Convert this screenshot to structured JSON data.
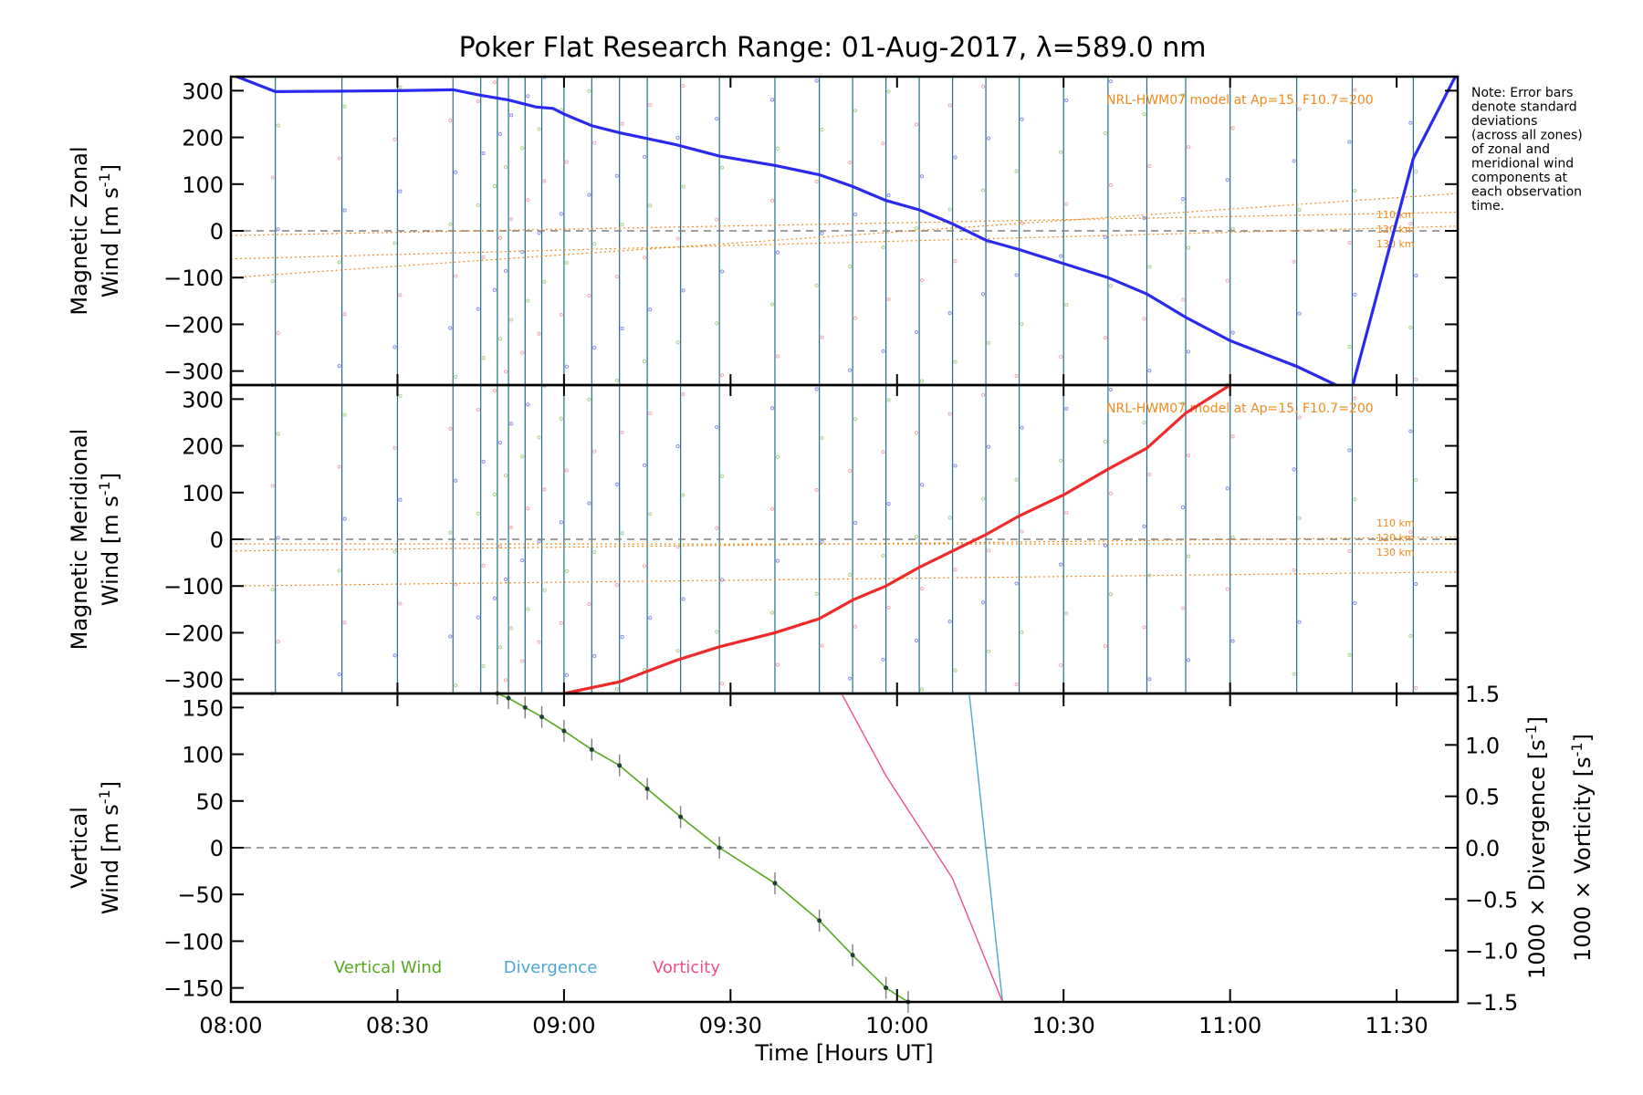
{
  "chart_data": [
    {
      "panel": "top",
      "type": "line",
      "title": "Poker Flat Research Range: 01-Aug-2017, λ=589.0 nm",
      "ylabel_line1": "Magnetic Zonal",
      "ylabel_line2_prefix": "Wind [m s",
      "ylabel_line2_sup": "-1",
      "ylabel_line2_suffix": "]",
      "ylim": [
        -330,
        330
      ],
      "yticks": [
        -300,
        -200,
        -100,
        0,
        100,
        200,
        300
      ],
      "ytick_labels": [
        "−300",
        "−200",
        "−100",
        "0",
        "100",
        "200",
        "300"
      ],
      "model_label": "NRL-HWM07 model at Ap=15, F10.7=200",
      "model_alt_labels": [
        "110 km",
        "120 km",
        "130 km"
      ],
      "note": [
        "Note: Error bars",
        "denote standard",
        "deviations",
        "(across all zones)",
        "of zonal and",
        "meridional wind",
        "components at",
        "each observation",
        "time."
      ],
      "series": [
        {
          "color": "#2a2aee",
          "x": [
            "08:00",
            "08:08",
            "08:20",
            "08:30",
            "08:40",
            "08:45",
            "08:50",
            "08:55",
            "08:58",
            "09:00",
            "09:05",
            "09:10",
            "09:20",
            "09:28",
            "09:38",
            "09:46",
            "09:52",
            "09:58",
            "10:04",
            "10:10",
            "10:16",
            "10:22",
            "10:30",
            "10:38",
            "10:45",
            "10:52",
            "11:00",
            "11:12",
            "11:20",
            "11:22",
            "11:33",
            "11:41"
          ],
          "y": [
            335,
            298,
            299,
            300,
            302,
            290,
            280,
            265,
            262,
            250,
            225,
            210,
            185,
            160,
            140,
            120,
            95,
            65,
            45,
            15,
            -20,
            -40,
            -70,
            -100,
            -135,
            -185,
            -235,
            -290,
            -335,
            -335,
            155,
            340
          ]
        }
      ],
      "model_lines": [
        {
          "label": "110 km",
          "x": [
            "08:00",
            "11:41"
          ],
          "y": [
            -100,
            80
          ]
        },
        {
          "label": "120 km",
          "x": [
            "08:00",
            "11:41"
          ],
          "y": [
            -60,
            10
          ]
        },
        {
          "label": "130 km",
          "x": [
            "08:00",
            "11:41"
          ],
          "y": [
            -10,
            40
          ]
        }
      ]
    },
    {
      "panel": "middle",
      "type": "line",
      "ylabel_line1": "Magnetic Meridional",
      "ylabel_line2_prefix": "Wind [m s",
      "ylabel_line2_sup": "-1",
      "ylabel_line2_suffix": "]",
      "ylim": [
        -330,
        330
      ],
      "yticks": [
        -300,
        -200,
        -100,
        0,
        100,
        200,
        300
      ],
      "ytick_labels": [
        "−300",
        "−200",
        "−100",
        "0",
        "100",
        "200",
        "300"
      ],
      "model_label": "NRL-HWM07 model at Ap=15, F10.7=200",
      "model_alt_labels": [
        "110 km",
        "120 km",
        "130 km"
      ],
      "series": [
        {
          "color": "#ee2a2a",
          "x": [
            "09:00",
            "09:10",
            "09:20",
            "09:28",
            "09:38",
            "09:46",
            "09:52",
            "09:58",
            "10:04",
            "10:10",
            "10:16",
            "10:22",
            "10:30",
            "10:38",
            "10:45",
            "10:52",
            "11:00"
          ],
          "y": [
            -330,
            -305,
            -260,
            -230,
            -200,
            -170,
            -130,
            -100,
            -60,
            -25,
            10,
            50,
            95,
            150,
            195,
            270,
            330
          ]
        }
      ],
      "model_lines": [
        {
          "label": "110 km",
          "x": [
            "08:00",
            "11:41"
          ],
          "y": [
            -100,
            -70
          ]
        },
        {
          "label": "120 km",
          "x": [
            "08:00",
            "11:41"
          ],
          "y": [
            -25,
            5
          ]
        },
        {
          "label": "130 km",
          "x": [
            "08:00",
            "11:41"
          ],
          "y": [
            -10,
            -10
          ]
        }
      ]
    },
    {
      "panel": "bottom",
      "type": "line",
      "xlabel": "Time [Hours UT]",
      "xticks": [
        "08:00",
        "08:30",
        "09:00",
        "09:30",
        "10:00",
        "10:30",
        "11:00",
        "11:30"
      ],
      "xlim": [
        "08:00",
        "11:41"
      ],
      "ylabel_line1": "Vertical",
      "ylabel_line2_prefix": "Wind [m s",
      "ylabel_line2_sup": "-1",
      "ylabel_line2_suffix": "]",
      "ylim": [
        -165,
        165
      ],
      "yticks": [
        -150,
        -100,
        -50,
        0,
        50,
        100,
        150
      ],
      "ytick_labels": [
        "−150",
        "−100",
        "−50",
        "0",
        "50",
        "100",
        "150"
      ],
      "y2lim": [
        -1.5,
        1.5
      ],
      "y2ticks": [
        -1.5,
        -1.0,
        -0.5,
        0.0,
        0.5,
        1.0,
        1.5
      ],
      "y2tick_labels": [
        "−1.5",
        "−1.0",
        "−0.5",
        "0.0",
        "0.5",
        "1.0",
        "1.5"
      ],
      "y2label_divergence_prefix": "1000 × Divergence [s",
      "y2label_vorticity_prefix": "1000 × Vorticity [s",
      "y2label_sup": "-1",
      "y2label_suffix": "]",
      "legend": [
        "Vertical Wind",
        "Divergence",
        "Vorticity"
      ],
      "series": [
        {
          "name": "Vertical Wind",
          "color": "#55a81e",
          "axis": "left",
          "x": [
            "08:48",
            "08:50",
            "08:53",
            "08:56",
            "09:00",
            "09:05",
            "09:10",
            "09:15",
            "09:21",
            "09:28",
            "09:38",
            "09:46",
            "09:52",
            "09:58",
            "10:02"
          ],
          "y": [
            165,
            160,
            150,
            140,
            125,
            105,
            88,
            63,
            33,
            0,
            -38,
            -78,
            -115,
            -150,
            -165
          ]
        },
        {
          "name": "Divergence",
          "color": "#4aa7d4",
          "axis": "right",
          "x": [
            "10:13",
            "10:19"
          ],
          "y": [
            1.5,
            -1.5
          ]
        },
        {
          "name": "Vorticity",
          "color": "#ee4f86",
          "axis": "right",
          "x": [
            "09:50",
            "09:58",
            "10:10",
            "10:19"
          ],
          "y": [
            1.5,
            0.7,
            -0.3,
            -1.5
          ]
        }
      ]
    }
  ]
}
